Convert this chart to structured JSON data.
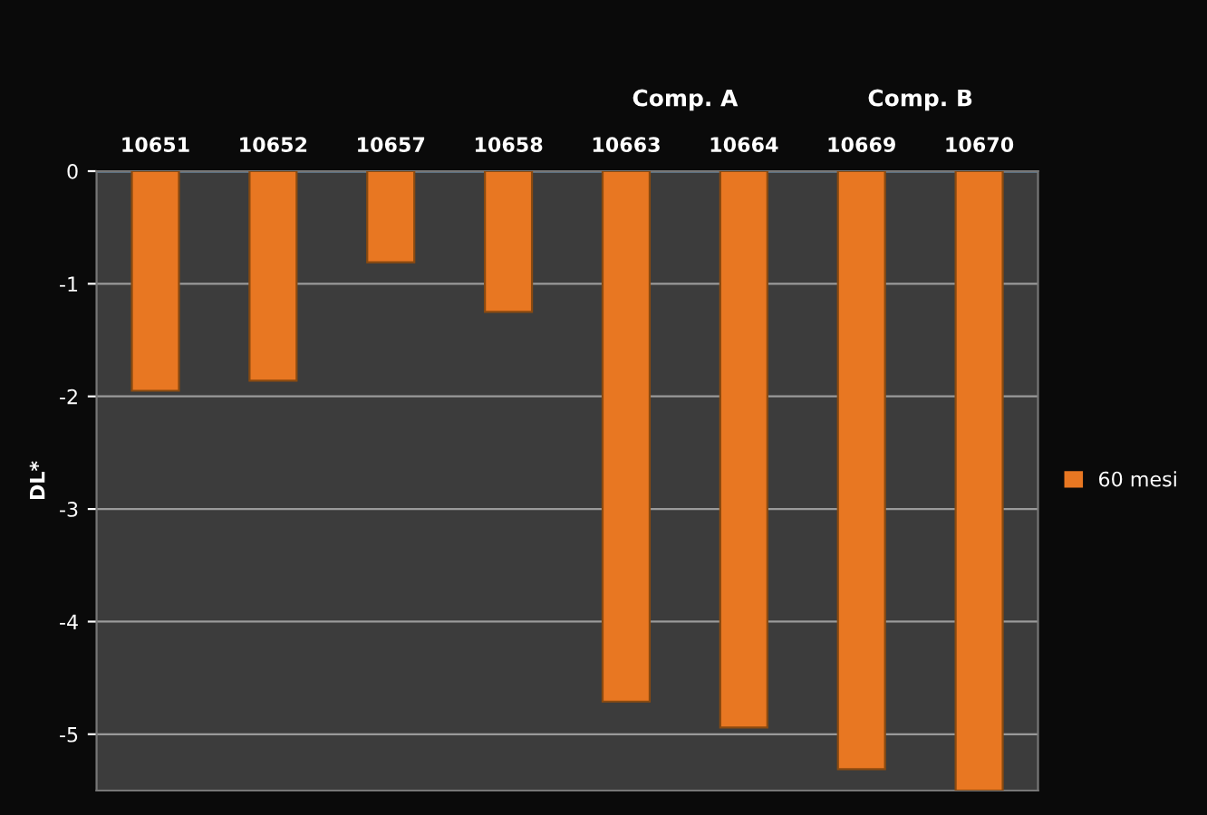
{
  "chart_data": {
    "type": "bar",
    "ylabel": "DL*",
    "categories": [
      "10651",
      "10652",
      "10657",
      "10658",
      "10663",
      "10664",
      "10669",
      "10670"
    ],
    "series": [
      {
        "name": "60 mesi",
        "color": "#e87722",
        "values": [
          -1.95,
          -1.86,
          -0.81,
          -1.25,
          -4.71,
          -4.94,
          -5.31,
          -5.5
        ]
      }
    ],
    "annotations": [
      "Comp. A",
      "Comp. B"
    ],
    "ylim": [
      -5.5,
      0
    ],
    "yticks": [
      0,
      -1,
      -2,
      -3,
      -4,
      -5
    ],
    "grid": "y",
    "legend": "right"
  }
}
